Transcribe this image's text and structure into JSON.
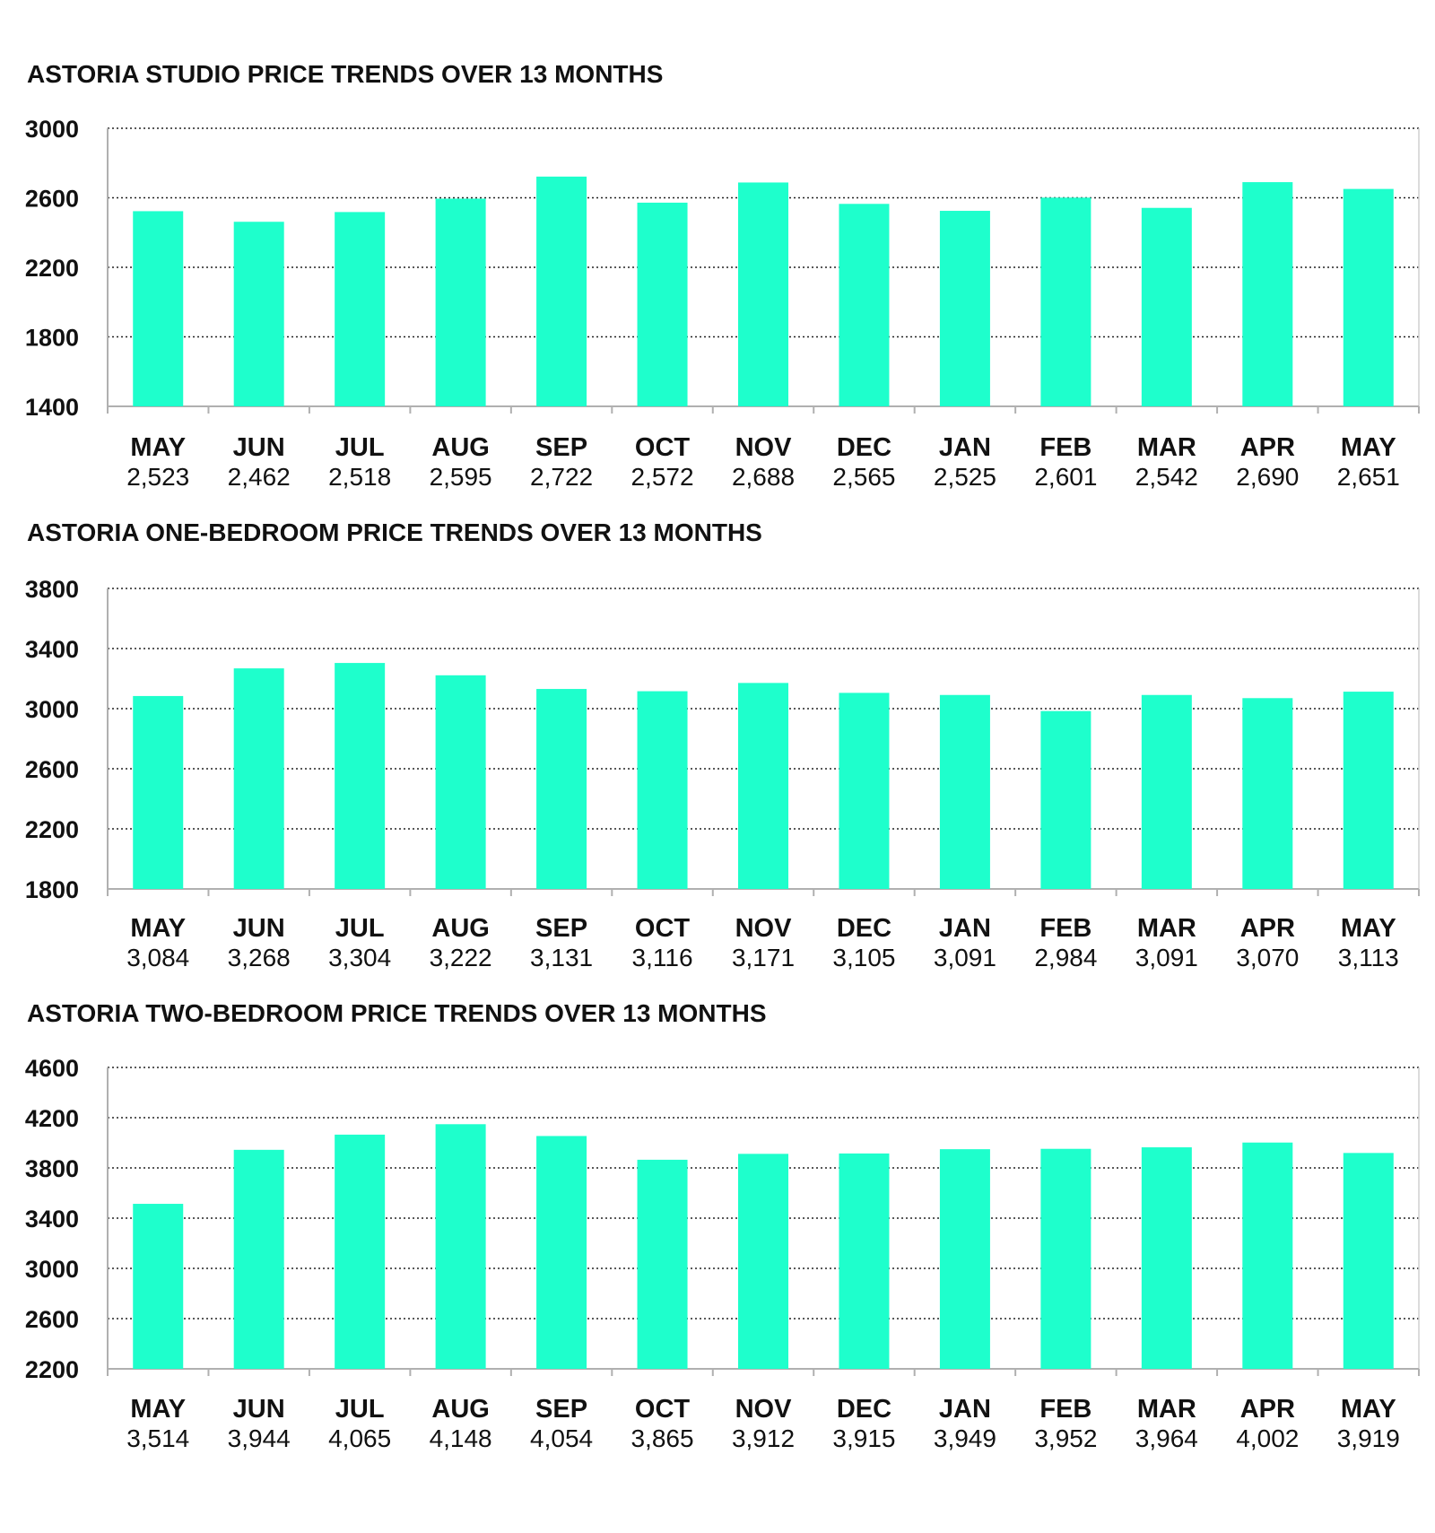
{
  "bar_color": "#1effcc",
  "chart_data": [
    {
      "type": "bar",
      "title": "ASTORIA STUDIO PRICE TRENDS OVER 13 MONTHS",
      "categories": [
        "MAY",
        "JUN",
        "JUL",
        "AUG",
        "SEP",
        "OCT",
        "NOV",
        "DEC",
        "JAN",
        "FEB",
        "MAR",
        "APR",
        "MAY"
      ],
      "values": [
        2523,
        2462,
        2518,
        2595,
        2722,
        2572,
        2688,
        2565,
        2525,
        2601,
        2542,
        2690,
        2651
      ],
      "value_labels": [
        "2,523",
        "2,462",
        "2,518",
        "2,595",
        "2,722",
        "2,572",
        "2,688",
        "2,565",
        "2,525",
        "2,601",
        "2,542",
        "2,690",
        "2,651"
      ],
      "ylim": [
        1400,
        3000
      ],
      "yticks": [
        "1400",
        "1800",
        "2200",
        "2600",
        "3000"
      ],
      "grid": true,
      "legend": "none"
    },
    {
      "type": "bar",
      "title": "ASTORIA ONE-BEDROOM PRICE TRENDS OVER 13 MONTHS",
      "categories": [
        "MAY",
        "JUN",
        "JUL",
        "AUG",
        "SEP",
        "OCT",
        "NOV",
        "DEC",
        "JAN",
        "FEB",
        "MAR",
        "APR",
        "MAY"
      ],
      "values": [
        3084,
        3268,
        3304,
        3222,
        3131,
        3116,
        3171,
        3105,
        3091,
        2984,
        3091,
        3070,
        3113
      ],
      "value_labels": [
        "3,084",
        "3,268",
        "3,304",
        "3,222",
        "3,131",
        "3,116",
        "3,171",
        "3,105",
        "3,091",
        "2,984",
        "3,091",
        "3,070",
        "3,113"
      ],
      "ylim": [
        1800,
        3800
      ],
      "yticks": [
        "1800",
        "2200",
        "2600",
        "3000",
        "3400",
        "3800"
      ],
      "grid": true,
      "legend": "none"
    },
    {
      "type": "bar",
      "title": "ASTORIA TWO-BEDROOM PRICE TRENDS OVER 13 MONTHS",
      "categories": [
        "MAY",
        "JUN",
        "JUL",
        "AUG",
        "SEP",
        "OCT",
        "NOV",
        "DEC",
        "JAN",
        "FEB",
        "MAR",
        "APR",
        "MAY"
      ],
      "values": [
        3514,
        3944,
        4065,
        4148,
        4054,
        3865,
        3912,
        3915,
        3949,
        3952,
        3964,
        4002,
        3919
      ],
      "value_labels": [
        "3,514",
        "3,944",
        "4,065",
        "4,148",
        "4,054",
        "3,865",
        "3,912",
        "3,915",
        "3,949",
        "3,952",
        "3,964",
        "4,002",
        "3,919"
      ],
      "ylim": [
        2200,
        4600
      ],
      "yticks": [
        "2200",
        "2600",
        "3000",
        "3400",
        "3800",
        "4200",
        "4600"
      ],
      "grid": true,
      "legend": "none"
    }
  ]
}
